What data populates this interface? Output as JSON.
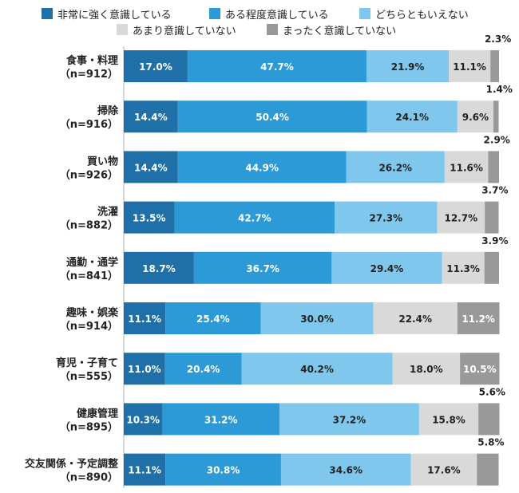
{
  "chart_data": {
    "type": "bar",
    "orientation": "horizontal",
    "stacked": true,
    "categories": [
      "食事・料理\n（n=912）",
      "掃除\n（n=916）",
      "買い物\n（n=926）",
      "洗濯\n（n=882）",
      "通勤・通学\n（n=841）",
      "趣味・娯楽\n（n=914）",
      "育児・子育て\n（n=555）",
      "健康管理\n（n=895）",
      "交友関係・予定調整\n（n=890）"
    ],
    "series": [
      {
        "name": "非常に強く意識している",
        "color": "#1f6fa8",
        "values": [
          17.0,
          14.4,
          14.4,
          13.5,
          18.7,
          11.1,
          11.0,
          10.3,
          11.1
        ]
      },
      {
        "name": "ある程度意識している",
        "color": "#2c9ad6",
        "values": [
          47.7,
          50.4,
          44.9,
          42.7,
          36.7,
          25.4,
          20.4,
          31.2,
          30.8
        ]
      },
      {
        "name": "どちらともいえない",
        "color": "#7fc7ec",
        "values": [
          21.9,
          24.1,
          26.2,
          27.3,
          29.4,
          30.0,
          40.2,
          37.2,
          34.6
        ]
      },
      {
        "name": "あまり意識していない",
        "color": "#d9d9d9",
        "values": [
          11.1,
          9.6,
          11.6,
          12.7,
          11.3,
          22.4,
          18.0,
          15.8,
          17.6
        ]
      },
      {
        "name": "まったく意識していない",
        "color": "#999999",
        "values": [
          2.3,
          1.4,
          2.9,
          3.7,
          3.9,
          11.2,
          10.5,
          5.6,
          5.8
        ]
      }
    ],
    "value_format": "{v}%",
    "legend_position": "top",
    "grid": false
  }
}
